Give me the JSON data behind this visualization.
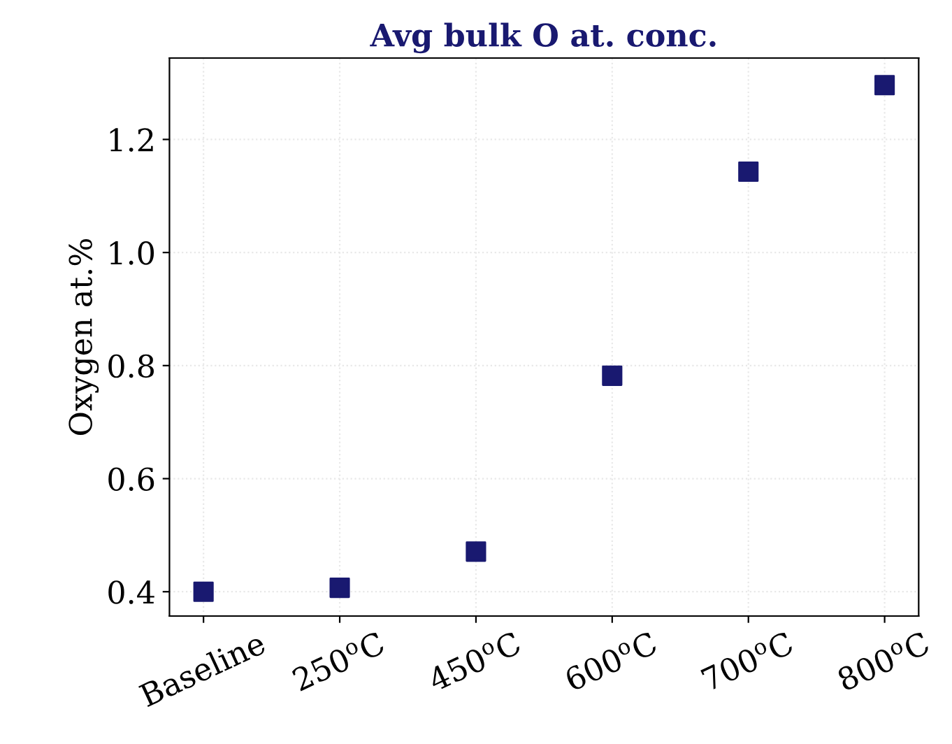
{
  "chart_data": {
    "type": "scatter",
    "title": "Avg bulk O at. conc.",
    "ylabel": "Oxygen at.%",
    "categories": [
      "Baseline",
      "250$^{o}$C",
      "450$^{o}$C",
      "600$^{o}$C",
      "700$^{o}$C",
      "800$^{o}$C"
    ],
    "series": [
      {
        "color": "#191970",
        "values": [
          0.4,
          0.407,
          0.471,
          0.782,
          1.143,
          1.296
        ]
      }
    ],
    "ylim": [
      0.357,
      1.344
    ],
    "yticks": [
      0.4,
      0.6,
      0.8,
      {
        "value": 1.0,
        "label": "1.0"
      },
      1.2
    ],
    "grid": true,
    "marker": "square"
  }
}
